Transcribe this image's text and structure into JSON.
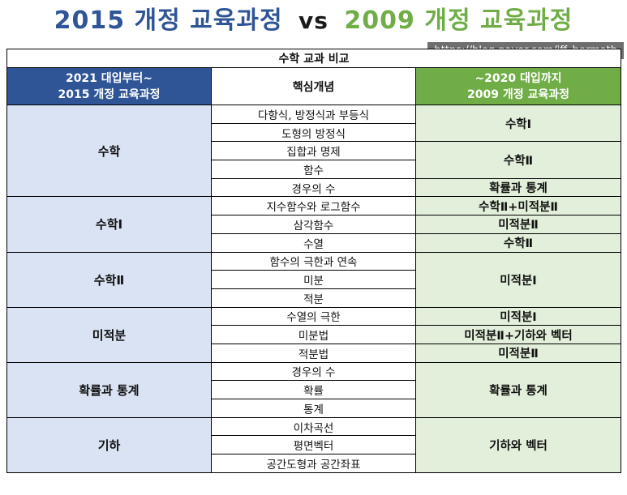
{
  "title": {
    "left": "2015 개정 교육과정",
    "vs": "vs",
    "right": "2009 개정 교육과정"
  },
  "watermark": "https://blog.naver.com/iff_hermath",
  "table": {
    "caption": "수학 교과 비교",
    "header": {
      "left_line1": "2021 대입부터~",
      "left_line2": "2015 개정 교육과정",
      "middle": "핵심개념",
      "right_line1": "~2020 대입까지",
      "right_line2": "2009 개정 교육과정"
    },
    "left_subjects": [
      "수학",
      "수학Ⅰ",
      "수학Ⅱ",
      "미적분",
      "확률과 통계",
      "기하"
    ],
    "concepts": [
      "다항식, 방정식과 부등식",
      "도형의 방정식",
      "집합과 명제",
      "함수",
      "경우의 수",
      "지수함수와 로그함수",
      "삼각함수",
      "수열",
      "함수의 극한과 연속",
      "미분",
      "적분",
      "수열의 극한",
      "미분법",
      "적분법",
      "경우의 수",
      "확률",
      "통계",
      "이차곡선",
      "평면벡터",
      "공간도형과 공간좌표"
    ],
    "right_subjects": [
      "수학Ⅰ",
      "수학Ⅱ",
      "확률과 통계",
      "수학Ⅱ+미적분Ⅱ",
      "미적분Ⅱ",
      "수학Ⅱ",
      "미적분Ⅰ",
      "미적분Ⅰ",
      "미적분Ⅱ+기하와 벡터",
      "미적분Ⅱ",
      "확률과 통계",
      "기하와 벡터"
    ]
  }
}
